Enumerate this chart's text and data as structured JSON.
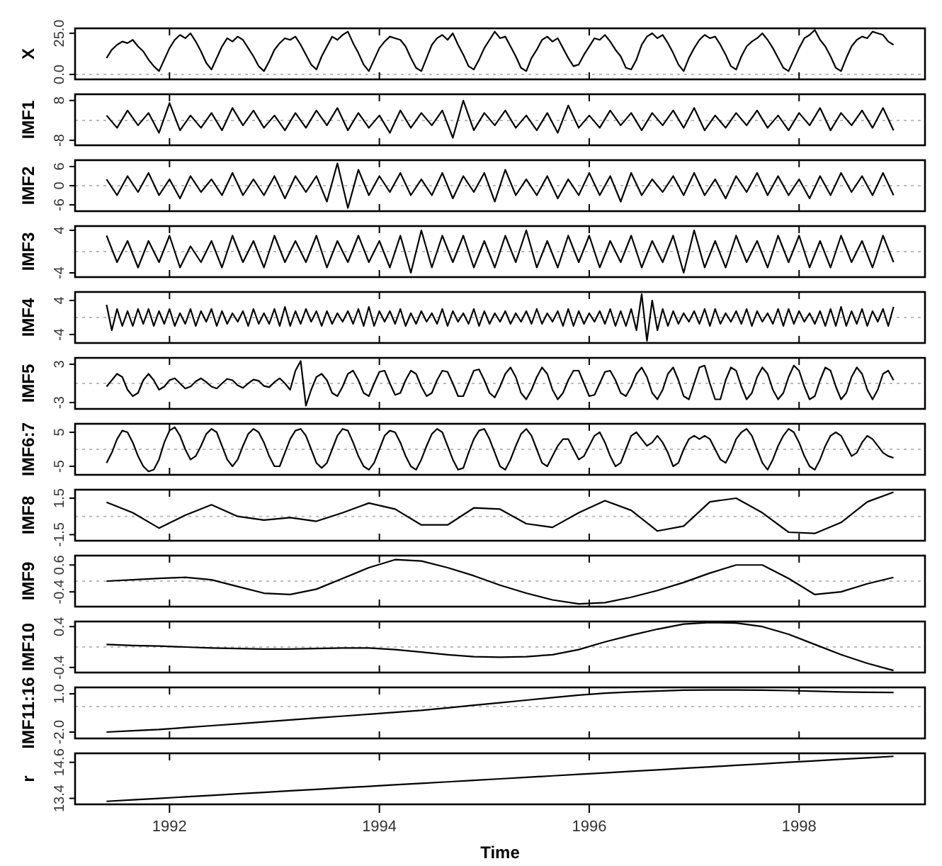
{
  "chart_data": [
    {
      "type": "line",
      "ylabel": "X",
      "color": "#000000",
      "xlim": [
        1991.1,
        1999.2
      ],
      "xticks": [
        1992,
        1994,
        1996,
        1998
      ],
      "ylim": [
        -3,
        28
      ],
      "yticks": [
        {
          "value": 0,
          "label": "0.0"
        },
        {
          "value": 25,
          "label": "25.0"
        }
      ],
      "tick_labels": "y",
      "ref_lines": [
        {
          "axis": "y",
          "value": 0,
          "color": "#bbbbbb",
          "line_style": "dotted"
        }
      ],
      "x": [
        1991.4,
        1991.45,
        1991.5,
        1991.55,
        1991.6,
        1991.65,
        1991.7,
        1991.75,
        1991.8,
        1991.85,
        1991.9,
        1991.95,
        1992,
        1992.05,
        1992.1,
        1992.15,
        1992.2,
        1992.25,
        1992.3,
        1992.35,
        1992.4,
        1992.45,
        1992.5,
        1992.55,
        1992.6,
        1992.65,
        1992.7,
        1992.75,
        1992.8,
        1992.85,
        1992.9,
        1992.95,
        1993,
        1993.05,
        1993.1,
        1993.15,
        1993.2,
        1993.25,
        1993.3,
        1993.35,
        1993.4,
        1993.45,
        1993.5,
        1993.55,
        1993.6,
        1993.65,
        1993.7,
        1993.75,
        1993.8,
        1993.85,
        1993.9,
        1993.95,
        1994,
        1994.05,
        1994.1,
        1994.15,
        1994.2,
        1994.25,
        1994.3,
        1994.35,
        1994.4,
        1994.45,
        1994.5,
        1994.55,
        1994.6,
        1994.65,
        1994.7,
        1994.75,
        1994.8,
        1994.85,
        1994.9,
        1994.95,
        1995,
        1995.05,
        1995.1,
        1995.15,
        1995.2,
        1995.25,
        1995.3,
        1995.35,
        1995.4,
        1995.45,
        1995.5,
        1995.55,
        1995.6,
        1995.65,
        1995.7,
        1995.75,
        1995.8,
        1995.85,
        1995.9,
        1995.95,
        1996,
        1996.05,
        1996.1,
        1996.15,
        1996.2,
        1996.25,
        1996.3,
        1996.35,
        1996.4,
        1996.45,
        1996.5,
        1996.55,
        1996.6,
        1996.65,
        1996.7,
        1996.75,
        1996.8,
        1996.85,
        1996.9,
        1996.95,
        1997,
        1997.05,
        1997.1,
        1997.15,
        1997.2,
        1997.25,
        1997.3,
        1997.35,
        1997.4,
        1997.45,
        1997.5,
        1997.55,
        1997.6,
        1997.65,
        1997.7,
        1997.75,
        1997.8,
        1997.85,
        1997.9,
        1997.95,
        1998,
        1998.05,
        1998.1,
        1998.15,
        1998.2,
        1998.25,
        1998.3,
        1998.35,
        1998.4,
        1998.45,
        1998.5,
        1998.55,
        1998.6,
        1998.65,
        1998.7,
        1998.75,
        1998.8,
        1998.85,
        1998.9
      ],
      "values": [
        10,
        15,
        18,
        20,
        19,
        21,
        17,
        14,
        9,
        5,
        2,
        9,
        16,
        21,
        24,
        22,
        25,
        20,
        14,
        7,
        3,
        10,
        17,
        22,
        20,
        23,
        21,
        16,
        11,
        5,
        2,
        8,
        15,
        19,
        22,
        21,
        23,
        18,
        12,
        6,
        3,
        11,
        17,
        23,
        21,
        24,
        26,
        19,
        13,
        6,
        2,
        9,
        16,
        20,
        23,
        22,
        21,
        17,
        10,
        4,
        2,
        10,
        18,
        22,
        24,
        21,
        25,
        18,
        12,
        5,
        3,
        9,
        16,
        21,
        26,
        22,
        23,
        17,
        11,
        4,
        2,
        10,
        15,
        21,
        23,
        20,
        22,
        16,
        10,
        5,
        6,
        12,
        17,
        22,
        21,
        24,
        20,
        15,
        11,
        4,
        3,
        9,
        18,
        23,
        25,
        22,
        24,
        19,
        13,
        6,
        2,
        10,
        16,
        21,
        24,
        22,
        23,
        18,
        12,
        5,
        3,
        11,
        17,
        20,
        22,
        25,
        21,
        16,
        10,
        4,
        2,
        9,
        16,
        22,
        24,
        27,
        21,
        17,
        11,
        4,
        2,
        10,
        17,
        21,
        23,
        22,
        26,
        25,
        24,
        20,
        18
      ]
    },
    {
      "type": "line",
      "ylabel": "IMF1",
      "color": "#000000",
      "xlim": [
        1991.1,
        1999.2
      ],
      "xticks": [
        1992,
        1994,
        1996,
        1998
      ],
      "ylim": [
        -10,
        10.5
      ],
      "yticks": [
        -8,
        8
      ],
      "tick_labels": "y",
      "ref_lines": [
        {
          "axis": "y",
          "value": 0,
          "color": "#bbbbbb",
          "line_style": "dotted"
        }
      ],
      "x": [
        1991.4,
        1991.5,
        1991.6,
        1991.7,
        1991.8,
        1991.9,
        1992,
        1992.1,
        1992.2,
        1992.3,
        1992.4,
        1992.5,
        1992.6,
        1992.7,
        1992.8,
        1992.9,
        1993,
        1993.1,
        1993.2,
        1993.3,
        1993.4,
        1993.5,
        1993.6,
        1993.7,
        1993.8,
        1993.9,
        1994,
        1994.1,
        1994.2,
        1994.3,
        1994.4,
        1994.5,
        1994.6,
        1994.7,
        1994.8,
        1994.9,
        1995,
        1995.1,
        1995.2,
        1995.3,
        1995.4,
        1995.5,
        1995.6,
        1995.7,
        1995.8,
        1995.9,
        1996,
        1996.1,
        1996.2,
        1996.3,
        1996.4,
        1996.5,
        1996.6,
        1996.7,
        1996.8,
        1996.9,
        1997,
        1997.1,
        1997.2,
        1997.3,
        1997.4,
        1997.5,
        1997.6,
        1997.7,
        1997.8,
        1997.9,
        1998,
        1998.1,
        1998.2,
        1998.3,
        1998.4,
        1998.5,
        1998.6,
        1998.7,
        1998.8,
        1998.9
      ],
      "values": [
        2,
        -3,
        4,
        -2,
        3,
        -5,
        7,
        -4,
        2,
        -3,
        3,
        -4,
        5,
        -2,
        4,
        -3,
        2,
        -4,
        3,
        -3,
        4,
        -2,
        5,
        -4,
        3,
        -3,
        2,
        -5,
        4,
        -3,
        3,
        -2,
        4,
        -7,
        8,
        -4,
        3,
        -2,
        4,
        -3,
        2,
        -4,
        3,
        -5,
        6,
        -3,
        2,
        -3,
        4,
        -2,
        3,
        -4,
        3,
        -2,
        4,
        -3,
        5,
        -4,
        2,
        -3,
        3,
        -2,
        4,
        -3,
        2,
        -4,
        3,
        -2,
        5,
        -4,
        3,
        -2,
        4,
        -3,
        5,
        -4
      ]
    },
    {
      "type": "line",
      "ylabel": "IMF2",
      "color": "#000000",
      "xlim": [
        1991.1,
        1999.2
      ],
      "xticks": [
        1992,
        1994,
        1996,
        1998
      ],
      "ylim": [
        -8,
        8
      ],
      "yticks": [
        -6,
        0,
        6
      ],
      "tick_labels": "y",
      "ref_lines": [
        {
          "axis": "y",
          "value": 0,
          "color": "#bbbbbb",
          "line_style": "dotted"
        }
      ],
      "x": [
        1991.4,
        1991.5,
        1991.6,
        1991.7,
        1991.8,
        1991.9,
        1992,
        1992.1,
        1992.2,
        1992.3,
        1992.4,
        1992.5,
        1992.6,
        1992.7,
        1992.8,
        1992.9,
        1993,
        1993.1,
        1993.2,
        1993.3,
        1993.4,
        1993.5,
        1993.6,
        1993.7,
        1993.8,
        1993.9,
        1994,
        1994.1,
        1994.2,
        1994.3,
        1994.4,
        1994.5,
        1994.6,
        1994.7,
        1994.8,
        1994.9,
        1995,
        1995.1,
        1995.2,
        1995.3,
        1995.4,
        1995.5,
        1995.6,
        1995.7,
        1995.8,
        1995.9,
        1996,
        1996.1,
        1996.2,
        1996.3,
        1996.4,
        1996.5,
        1996.6,
        1996.7,
        1996.8,
        1996.9,
        1997,
        1997.1,
        1997.2,
        1997.3,
        1997.4,
        1997.5,
        1997.6,
        1997.7,
        1997.8,
        1997.9,
        1998,
        1998.1,
        1998.2,
        1998.3,
        1998.4,
        1998.5,
        1998.6,
        1998.7,
        1998.8,
        1998.9
      ],
      "values": [
        2,
        -3,
        3,
        -2,
        4,
        -3,
        2,
        -4,
        3,
        -2,
        2,
        -3,
        4,
        -3,
        2,
        -3,
        3,
        -4,
        3,
        -2,
        3,
        -5,
        7,
        -7,
        5,
        -3,
        3,
        -2,
        4,
        -3,
        2,
        -3,
        4,
        -4,
        3,
        -2,
        4,
        -5,
        5,
        -3,
        2,
        -3,
        3,
        -4,
        2,
        -3,
        4,
        -3,
        3,
        -5,
        4,
        -3,
        2,
        -2,
        3,
        -3,
        4,
        -3,
        2,
        -4,
        3,
        -2,
        4,
        -3,
        3,
        -3,
        2,
        -4,
        3,
        -3,
        4,
        -2,
        3,
        -3,
        4,
        -3
      ]
    },
    {
      "type": "line",
      "ylabel": "IMF3",
      "color": "#000000",
      "xlim": [
        1991.1,
        1999.2
      ],
      "xticks": [
        1992,
        1994,
        1996,
        1998
      ],
      "ylim": [
        -4.8,
        4.8
      ],
      "yticks": [
        -4,
        4
      ],
      "tick_labels": "y",
      "ref_lines": [
        {
          "axis": "y",
          "value": 0,
          "color": "#bbbbbb",
          "line_style": "dotted"
        }
      ],
      "x": [
        1991.4,
        1991.5,
        1991.6,
        1991.7,
        1991.8,
        1991.9,
        1992,
        1992.1,
        1992.2,
        1992.3,
        1992.4,
        1992.5,
        1992.6,
        1992.7,
        1992.8,
        1992.9,
        1993,
        1993.1,
        1993.2,
        1993.3,
        1993.4,
        1993.5,
        1993.6,
        1993.7,
        1993.8,
        1993.9,
        1994,
        1994.1,
        1994.2,
        1994.3,
        1994.4,
        1994.5,
        1994.6,
        1994.7,
        1994.8,
        1994.9,
        1995,
        1995.1,
        1995.2,
        1995.3,
        1995.4,
        1995.5,
        1995.6,
        1995.7,
        1995.8,
        1995.9,
        1996,
        1996.1,
        1996.2,
        1996.3,
        1996.4,
        1996.5,
        1996.6,
        1996.7,
        1996.8,
        1996.9,
        1997,
        1997.1,
        1997.2,
        1997.3,
        1997.4,
        1997.5,
        1997.6,
        1997.7,
        1997.8,
        1997.9,
        1998,
        1998.1,
        1998.2,
        1998.3,
        1998.4,
        1998.5,
        1998.6,
        1998.7,
        1998.8,
        1998.9
      ],
      "values": [
        3,
        -2,
        2,
        -3,
        2,
        -2,
        3,
        -3,
        1,
        -2,
        2,
        -3,
        3,
        -2,
        2,
        -3,
        3,
        -2,
        2,
        -2,
        3,
        -3,
        2,
        -2,
        3,
        -2,
        2,
        -3,
        3,
        -4,
        4,
        -3,
        3,
        -2,
        3,
        -3,
        2,
        -3,
        3,
        -2,
        4,
        -3,
        2,
        -3,
        3,
        -2,
        3,
        -3,
        2,
        -2,
        3,
        -3,
        2,
        -2,
        3,
        -4,
        4,
        -3,
        2,
        -3,
        3,
        -2,
        2,
        -3,
        3,
        -2,
        3,
        -3,
        2,
        -3,
        3,
        -2,
        2,
        -3,
        3,
        -2
      ]
    },
    {
      "type": "line",
      "ylabel": "IMF4",
      "color": "#000000",
      "xlim": [
        1991.1,
        1999.2
      ],
      "xticks": [
        1992,
        1994,
        1996,
        1998
      ],
      "ylim": [
        -6,
        6
      ],
      "yticks": [
        -4,
        4
      ],
      "tick_labels": "y",
      "ref_lines": [
        {
          "axis": "y",
          "value": 0,
          "color": "#bbbbbb",
          "line_style": "dotted"
        }
      ],
      "x": [
        1991.4,
        1991.45,
        1991.5,
        1991.55,
        1991.6,
        1991.65,
        1991.7,
        1991.75,
        1991.8,
        1991.85,
        1991.9,
        1991.95,
        1992,
        1992.05,
        1992.1,
        1992.15,
        1992.2,
        1992.25,
        1992.3,
        1992.35,
        1992.4,
        1992.45,
        1992.5,
        1992.55,
        1992.6,
        1992.65,
        1992.7,
        1992.75,
        1992.8,
        1992.85,
        1992.9,
        1992.95,
        1993,
        1993.05,
        1993.1,
        1993.15,
        1993.2,
        1993.25,
        1993.3,
        1993.35,
        1993.4,
        1993.45,
        1993.5,
        1993.55,
        1993.6,
        1993.65,
        1993.7,
        1993.75,
        1993.8,
        1993.85,
        1993.9,
        1993.95,
        1994,
        1994.05,
        1994.1,
        1994.15,
        1994.2,
        1994.25,
        1994.3,
        1994.35,
        1994.4,
        1994.45,
        1994.5,
        1994.55,
        1994.6,
        1994.65,
        1994.7,
        1994.75,
        1994.8,
        1994.85,
        1994.9,
        1994.95,
        1995,
        1995.05,
        1995.1,
        1995.15,
        1995.2,
        1995.25,
        1995.3,
        1995.35,
        1995.4,
        1995.45,
        1995.5,
        1995.55,
        1995.6,
        1995.65,
        1995.7,
        1995.75,
        1995.8,
        1995.85,
        1995.9,
        1995.95,
        1996,
        1996.05,
        1996.1,
        1996.15,
        1996.2,
        1996.25,
        1996.3,
        1996.35,
        1996.4,
        1996.45,
        1996.5,
        1996.55,
        1996.6,
        1996.65,
        1996.7,
        1996.75,
        1996.8,
        1996.85,
        1996.9,
        1996.95,
        1997,
        1997.05,
        1997.1,
        1997.15,
        1997.2,
        1997.25,
        1997.3,
        1997.35,
        1997.4,
        1997.45,
        1997.5,
        1997.55,
        1997.6,
        1997.65,
        1997.7,
        1997.75,
        1997.8,
        1997.85,
        1997.9,
        1997.95,
        1998,
        1998.05,
        1998.1,
        1998.15,
        1998.2,
        1998.25,
        1998.3,
        1998.35,
        1998.4,
        1998.45,
        1998.5,
        1998.55,
        1998.6,
        1998.65,
        1998.7,
        1998.75,
        1998.8,
        1998.85,
        1998.9
      ],
      "values": [
        3,
        -3,
        2,
        -2,
        1.5,
        -2,
        2,
        -1.5,
        2,
        -2,
        1.5,
        -1.5,
        2,
        -2,
        1,
        -1.5,
        2,
        -2,
        1.5,
        -1,
        2,
        -2,
        1.5,
        -1.5,
        1,
        -1,
        1.5,
        -2,
        2,
        -1.5,
        1,
        -1.5,
        2,
        -2,
        2.5,
        -2,
        1.5,
        -1.5,
        2,
        -1,
        1.5,
        -2,
        1.5,
        -1.5,
        1,
        -1,
        1.5,
        -1.5,
        2,
        -2,
        2.5,
        -2,
        1.5,
        -1,
        1.5,
        -1.5,
        2,
        -2,
        1,
        -1.5,
        1.5,
        -1,
        1,
        -1.5,
        2,
        -2,
        1.5,
        -1,
        1,
        -1.5,
        2,
        -2,
        1.5,
        -1.5,
        1,
        -1,
        1.5,
        -1.5,
        1,
        -1,
        1.5,
        -1.5,
        2,
        -1.5,
        1,
        -1,
        1.5,
        -2,
        2,
        -2,
        1.5,
        -1.5,
        1,
        -1,
        1.5,
        -1.5,
        2,
        -2,
        1.5,
        -2,
        2,
        -3,
        5.5,
        -5.5,
        4,
        -3,
        2,
        -2,
        1.5,
        -1.5,
        1,
        -1,
        1.5,
        -1.5,
        2,
        -2,
        2,
        -1.5,
        1,
        -1,
        1.5,
        -1.5,
        2,
        -2,
        1.5,
        -1,
        1,
        -1.5,
        2,
        -2,
        2,
        -1.5,
        1.5,
        -1,
        1,
        -1.5,
        1.5,
        -2,
        2,
        -2,
        2.5,
        -2,
        1.5,
        -1.5,
        2,
        -2,
        1.5,
        -1,
        2,
        -2,
        2.5
      ]
    },
    {
      "type": "line",
      "ylabel": "IMF5",
      "color": "#000000",
      "xlim": [
        1991.1,
        1999.2
      ],
      "xticks": [
        1992,
        1994,
        1996,
        1998
      ],
      "ylim": [
        -4,
        4
      ],
      "yticks": [
        -3,
        3
      ],
      "tick_labels": "y",
      "ref_lines": [
        {
          "axis": "y",
          "value": 0,
          "color": "#bbbbbb",
          "line_style": "dotted"
        }
      ],
      "x": [
        1991.4,
        1991.45,
        1991.5,
        1991.55,
        1991.6,
        1991.65,
        1991.7,
        1991.75,
        1991.8,
        1991.85,
        1991.9,
        1991.95,
        1992,
        1992.05,
        1992.1,
        1992.15,
        1992.2,
        1992.25,
        1992.3,
        1992.35,
        1992.4,
        1992.45,
        1992.5,
        1992.55,
        1992.6,
        1992.65,
        1992.7,
        1992.75,
        1992.8,
        1992.85,
        1992.9,
        1992.95,
        1993,
        1993.05,
        1993.1,
        1993.15,
        1993.2,
        1993.25,
        1993.3,
        1993.35,
        1993.4,
        1993.45,
        1993.5,
        1993.55,
        1993.6,
        1993.65,
        1993.7,
        1993.75,
        1993.8,
        1993.85,
        1993.9,
        1993.95,
        1994,
        1994.05,
        1994.1,
        1994.15,
        1994.2,
        1994.25,
        1994.3,
        1994.35,
        1994.4,
        1994.45,
        1994.5,
        1994.55,
        1994.6,
        1994.65,
        1994.7,
        1994.75,
        1994.8,
        1994.85,
        1994.9,
        1994.95,
        1995,
        1995.05,
        1995.1,
        1995.15,
        1995.2,
        1995.25,
        1995.3,
        1995.35,
        1995.4,
        1995.45,
        1995.5,
        1995.55,
        1995.6,
        1995.65,
        1995.7,
        1995.75,
        1995.8,
        1995.85,
        1995.9,
        1995.95,
        1996,
        1996.05,
        1996.1,
        1996.15,
        1996.2,
        1996.25,
        1996.3,
        1996.35,
        1996.4,
        1996.45,
        1996.5,
        1996.55,
        1996.6,
        1996.65,
        1996.7,
        1996.75,
        1996.8,
        1996.85,
        1996.9,
        1996.95,
        1997,
        1997.05,
        1997.1,
        1997.15,
        1997.2,
        1997.25,
        1997.3,
        1997.35,
        1997.4,
        1997.45,
        1997.5,
        1997.55,
        1997.6,
        1997.65,
        1997.7,
        1997.75,
        1997.8,
        1997.85,
        1997.9,
        1997.95,
        1998,
        1998.05,
        1998.1,
        1998.15,
        1998.2,
        1998.25,
        1998.3,
        1998.35,
        1998.4,
        1998.45,
        1998.5,
        1998.55,
        1998.6,
        1998.65,
        1998.7,
        1998.75,
        1998.8,
        1998.85,
        1998.9
      ],
      "values": [
        -0.5,
        0.5,
        1.5,
        1,
        -1,
        -2,
        -1.5,
        0.5,
        1.5,
        0.5,
        -1,
        -0.5,
        0.5,
        0.8,
        0,
        -0.8,
        -0.5,
        0.3,
        0.8,
        0.2,
        -0.5,
        -0.8,
        0,
        0.7,
        0.5,
        -0.3,
        -0.7,
        0,
        0.6,
        0.4,
        -0.4,
        -0.6,
        0.2,
        0.8,
        0,
        -1,
        2,
        3.5,
        -3.5,
        -1,
        1,
        1.5,
        0.5,
        -1.5,
        -2,
        -0.5,
        1.5,
        2,
        0.5,
        -1.5,
        -2,
        0,
        1.8,
        2,
        0,
        -1.8,
        -1.5,
        0.5,
        2,
        1.5,
        -0.5,
        -2,
        -1.5,
        0.5,
        2,
        1.8,
        0,
        -2,
        -2,
        0,
        2,
        2.2,
        0.5,
        -1.5,
        -2.2,
        -0.5,
        1.5,
        2.5,
        1,
        -1.5,
        -2.5,
        -1,
        1,
        2.5,
        1.5,
        -1,
        -2.5,
        -1.5,
        0.5,
        2,
        2,
        0,
        -2,
        -1.8,
        0,
        1.8,
        2,
        0.5,
        -1.5,
        -2,
        -0.5,
        1.5,
        2.5,
        1,
        -1.5,
        -2.5,
        -1,
        1.5,
        2.5,
        0.5,
        -2,
        -2.5,
        0,
        2.5,
        2.8,
        0,
        -2.5,
        -2.5,
        0.5,
        2.5,
        2,
        -0.5,
        -2.5,
        -1.5,
        1,
        2.5,
        1.5,
        -1,
        -2.5,
        -1.5,
        1,
        2.8,
        2,
        -0.5,
        -2.5,
        -2,
        0.5,
        2.5,
        2,
        -0.5,
        -2.5,
        -1.5,
        1,
        2.5,
        1.5,
        -1,
        -2.5,
        -1,
        1.5,
        2,
        0.5
      ]
    },
    {
      "type": "line",
      "ylabel": "IMF6:7",
      "color": "#000000",
      "xlim": [
        1991.1,
        1999.2
      ],
      "xticks": [
        1992,
        1994,
        1996,
        1998
      ],
      "ylim": [
        -7.5,
        7.5
      ],
      "yticks": [
        -5,
        5
      ],
      "tick_labels": "y",
      "ref_lines": [
        {
          "axis": "y",
          "value": 0,
          "color": "#bbbbbb",
          "line_style": "dotted"
        }
      ],
      "x": [
        1991.4,
        1991.45,
        1991.5,
        1991.55,
        1991.6,
        1991.65,
        1991.7,
        1991.75,
        1991.8,
        1991.85,
        1991.9,
        1991.95,
        1992,
        1992.05,
        1992.1,
        1992.15,
        1992.2,
        1992.25,
        1992.3,
        1992.35,
        1992.4,
        1992.45,
        1992.5,
        1992.55,
        1992.6,
        1992.65,
        1992.7,
        1992.75,
        1992.8,
        1992.85,
        1992.9,
        1992.95,
        1993,
        1993.05,
        1993.1,
        1993.15,
        1993.2,
        1993.25,
        1993.3,
        1993.35,
        1993.4,
        1993.45,
        1993.5,
        1993.55,
        1993.6,
        1993.65,
        1993.7,
        1993.75,
        1993.8,
        1993.85,
        1993.9,
        1993.95,
        1994,
        1994.05,
        1994.1,
        1994.15,
        1994.2,
        1994.25,
        1994.3,
        1994.35,
        1994.4,
        1994.45,
        1994.5,
        1994.55,
        1994.6,
        1994.65,
        1994.7,
        1994.75,
        1994.8,
        1994.85,
        1994.9,
        1994.95,
        1995,
        1995.05,
        1995.1,
        1995.15,
        1995.2,
        1995.25,
        1995.3,
        1995.35,
        1995.4,
        1995.45,
        1995.5,
        1995.55,
        1995.6,
        1995.65,
        1995.7,
        1995.75,
        1995.8,
        1995.85,
        1995.9,
        1995.95,
        1996,
        1996.05,
        1996.1,
        1996.15,
        1996.2,
        1996.25,
        1996.3,
        1996.35,
        1996.4,
        1996.45,
        1996.5,
        1996.55,
        1996.6,
        1996.65,
        1996.7,
        1996.75,
        1996.8,
        1996.85,
        1996.9,
        1996.95,
        1997,
        1997.05,
        1997.1,
        1997.15,
        1997.2,
        1997.25,
        1997.3,
        1997.35,
        1997.4,
        1997.45,
        1997.5,
        1997.55,
        1997.6,
        1997.65,
        1997.7,
        1997.75,
        1997.8,
        1997.85,
        1997.9,
        1997.95,
        1998,
        1998.05,
        1998.1,
        1998.15,
        1998.2,
        1998.25,
        1998.3,
        1998.35,
        1998.4,
        1998.45,
        1998.5,
        1998.55,
        1998.6,
        1998.65,
        1998.7,
        1998.75,
        1998.8,
        1998.85,
        1998.9
      ],
      "values": [
        -4,
        -1,
        3,
        5.5,
        5,
        2,
        -2,
        -5,
        -6.5,
        -6,
        -3,
        2,
        5.5,
        6.5,
        4,
        0,
        -3,
        -2,
        1,
        4.5,
        6,
        5,
        1,
        -3,
        -5,
        -3,
        1,
        4.5,
        6,
        5,
        2,
        -2,
        -5,
        -5,
        -1,
        3,
        5.5,
        6,
        4,
        0,
        -4,
        -5.5,
        -4,
        0,
        4,
        6,
        5.5,
        2,
        -2,
        -5,
        -6,
        -4,
        0,
        4,
        5.5,
        5,
        2,
        -2,
        -5,
        -6,
        -3,
        1,
        4.5,
        6,
        5,
        1,
        -3,
        -6,
        -5.5,
        -1,
        3,
        5.5,
        6,
        3,
        -1,
        -5,
        -6,
        -3,
        1,
        4.5,
        6,
        4,
        0,
        -4,
        -5,
        -2,
        1,
        3,
        3,
        0,
        -3,
        -2,
        1,
        4,
        5,
        2,
        -2,
        -5,
        -4,
        0,
        4,
        5,
        3,
        1,
        2,
        4,
        2,
        -1,
        -5,
        -4,
        0,
        3,
        4,
        3,
        4,
        3,
        0,
        -3,
        -4,
        -1,
        3,
        5,
        6,
        4,
        0,
        -4,
        -6,
        -3,
        1,
        4,
        6,
        5,
        2,
        -2,
        -5,
        -6,
        -3,
        1,
        4,
        5,
        4,
        1,
        -2,
        -1,
        2,
        4,
        3,
        1,
        -1,
        -2,
        -2.5
      ]
    },
    {
      "type": "line",
      "ylabel": "IMF8",
      "color": "#000000",
      "xlim": [
        1991.1,
        1999.2
      ],
      "xticks": [
        1992,
        1994,
        1996,
        1998
      ],
      "ylim": [
        -2,
        2.2
      ],
      "yticks": [
        -1.5,
        1.5
      ],
      "tick_labels": "y",
      "ref_lines": [
        {
          "axis": "y",
          "value": 0,
          "color": "#bbbbbb",
          "line_style": "dotted"
        }
      ],
      "x": [
        1991.4,
        1991.65,
        1991.9,
        1992.15,
        1992.4,
        1992.65,
        1992.9,
        1993.15,
        1993.4,
        1993.65,
        1993.9,
        1994.15,
        1994.4,
        1994.65,
        1994.9,
        1995.15,
        1995.4,
        1995.65,
        1995.9,
        1996.15,
        1996.4,
        1996.65,
        1996.9,
        1997.15,
        1997.4,
        1997.65,
        1997.9,
        1998.15,
        1998.4,
        1998.65,
        1998.9
      ],
      "values": [
        1.17,
        0.3,
        -0.96,
        0.1,
        0.96,
        0.0,
        -0.3,
        -0.1,
        -0.4,
        0.3,
        1.1,
        0.6,
        -0.7,
        -0.7,
        0.7,
        0.6,
        -0.6,
        -0.9,
        0.3,
        1.3,
        0.5,
        -1.2,
        -0.8,
        1.2,
        1.5,
        0.3,
        -1.3,
        -1.4,
        -0.5,
        1.2,
        2.0
      ]
    },
    {
      "type": "line",
      "ylabel": "IMF9",
      "color": "#000000",
      "xlim": [
        1991.1,
        1999.2
      ],
      "xticks": [
        1992,
        1994,
        1996,
        1998
      ],
      "ylim": [
        -0.95,
        0.95
      ],
      "yticks": [
        -0.4,
        0.6
      ],
      "tick_labels": "y",
      "ref_lines": [
        {
          "axis": "y",
          "value": 0,
          "color": "#bbbbbb",
          "line_style": "dotted"
        }
      ],
      "x": [
        1991.4,
        1991.65,
        1991.9,
        1992.15,
        1992.4,
        1992.65,
        1992.9,
        1993.15,
        1993.4,
        1993.65,
        1993.9,
        1994.15,
        1994.4,
        1994.65,
        1994.9,
        1995.15,
        1995.4,
        1995.65,
        1995.9,
        1996.15,
        1996.4,
        1996.65,
        1996.9,
        1997.15,
        1997.4,
        1997.65,
        1997.9,
        1998.15,
        1998.4,
        1998.65,
        1998.9
      ],
      "values": [
        0.0,
        0.05,
        0.1,
        0.14,
        0.05,
        -0.2,
        -0.45,
        -0.5,
        -0.3,
        0.1,
        0.5,
        0.8,
        0.75,
        0.5,
        0.2,
        -0.15,
        -0.45,
        -0.7,
        -0.85,
        -0.8,
        -0.6,
        -0.35,
        -0.05,
        0.3,
        0.6,
        0.6,
        0.1,
        -0.5,
        -0.4,
        -0.1,
        0.14
      ]
    },
    {
      "type": "line",
      "ylabel": "IMF10",
      "color": "#000000",
      "xlim": [
        1991.1,
        1999.2
      ],
      "xticks": [
        1992,
        1994,
        1996,
        1998
      ],
      "ylim": [
        -0.5,
        0.5
      ],
      "yticks": [
        -0.4,
        0.4
      ],
      "tick_labels": "y",
      "ref_lines": [
        {
          "axis": "y",
          "value": 0,
          "color": "#bbbbbb",
          "line_style": "dotted"
        }
      ],
      "x": [
        1991.4,
        1991.65,
        1991.9,
        1992.15,
        1992.4,
        1992.65,
        1992.9,
        1993.15,
        1993.4,
        1993.65,
        1993.9,
        1994.15,
        1994.4,
        1994.65,
        1994.9,
        1995.15,
        1995.4,
        1995.65,
        1995.9,
        1996.15,
        1996.4,
        1996.65,
        1996.9,
        1997.15,
        1997.4,
        1997.65,
        1997.9,
        1998.15,
        1998.4,
        1998.65,
        1998.9
      ],
      "values": [
        0.05,
        0.03,
        0.02,
        0.0,
        -0.02,
        -0.03,
        -0.04,
        -0.04,
        -0.03,
        -0.02,
        -0.02,
        -0.05,
        -0.1,
        -0.15,
        -0.19,
        -0.2,
        -0.19,
        -0.15,
        -0.05,
        0.1,
        0.23,
        0.35,
        0.45,
        0.48,
        0.47,
        0.4,
        0.25,
        0.05,
        -0.15,
        -0.32,
        -0.46
      ]
    },
    {
      "type": "line",
      "ylabel": "IMF11:16",
      "color": "#000000",
      "xlim": [
        1991.1,
        1999.2
      ],
      "xticks": [
        1992,
        1994,
        1996,
        1998
      ],
      "ylim": [
        -2.5,
        1.5
      ],
      "yticks": [
        {
          "value": -2,
          "label": "-2.0"
        },
        {
          "value": 1,
          "label": "1.0"
        }
      ],
      "tick_labels": "y",
      "ref_lines": [
        {
          "axis": "y",
          "value": 0,
          "color": "#bbbbbb",
          "line_style": "dotted"
        }
      ],
      "x": [
        1991.4,
        1991.65,
        1991.9,
        1992.15,
        1992.4,
        1992.65,
        1992.9,
        1993.15,
        1993.4,
        1993.65,
        1993.9,
        1994.15,
        1994.4,
        1994.65,
        1994.9,
        1995.15,
        1995.4,
        1995.65,
        1995.9,
        1996.15,
        1996.4,
        1996.65,
        1996.9,
        1997.15,
        1997.4,
        1997.65,
        1997.9,
        1998.15,
        1998.4,
        1998.65,
        1998.9
      ],
      "values": [
        -2.0,
        -1.9,
        -1.8,
        -1.65,
        -1.5,
        -1.35,
        -1.2,
        -1.05,
        -0.9,
        -0.75,
        -0.6,
        -0.45,
        -0.3,
        -0.1,
        0.1,
        0.3,
        0.5,
        0.7,
        0.9,
        1.05,
        1.15,
        1.22,
        1.28,
        1.3,
        1.3,
        1.28,
        1.25,
        1.2,
        1.15,
        1.12,
        1.1
      ]
    },
    {
      "type": "line",
      "ylabel": "r",
      "xlabel": "Time",
      "color": "#000000",
      "xlim": [
        1991.1,
        1999.2
      ],
      "xticks": [
        1992,
        1994,
        1996,
        1998
      ],
      "ylim": [
        13.2,
        14.9
      ],
      "yticks": [
        13.4,
        14.6
      ],
      "x": [
        1991.4,
        1991.65,
        1991.9,
        1992.15,
        1992.4,
        1992.65,
        1992.9,
        1993.15,
        1993.4,
        1993.65,
        1993.9,
        1994.15,
        1994.4,
        1994.65,
        1994.9,
        1995.15,
        1995.4,
        1995.65,
        1995.9,
        1996.15,
        1996.4,
        1996.65,
        1996.9,
        1997.15,
        1997.4,
        1997.65,
        1997.9,
        1998.15,
        1998.4,
        1998.65,
        1998.9
      ],
      "values": [
        13.3,
        13.35,
        13.4,
        13.45,
        13.5,
        13.55,
        13.6,
        13.65,
        13.7,
        13.75,
        13.8,
        13.85,
        13.9,
        13.95,
        14.0,
        14.05,
        14.1,
        14.15,
        14.2,
        14.25,
        14.3,
        14.35,
        14.4,
        14.45,
        14.5,
        14.55,
        14.6,
        14.65,
        14.7,
        14.75,
        14.8
      ]
    }
  ]
}
